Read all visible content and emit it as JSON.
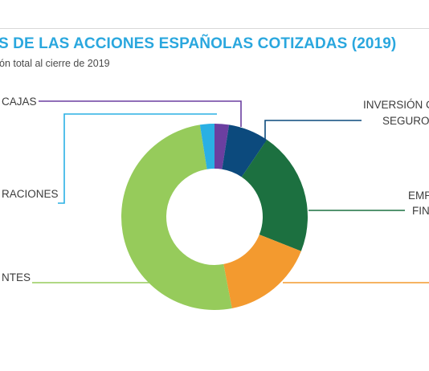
{
  "header": {
    "title": "S DE LAS ACCIONES ESPAÑOLAS COTIZADAS (2019)",
    "subtitle": "ón total al cierre de 2019"
  },
  "chart_data": {
    "type": "pie",
    "donut": true,
    "title": "S DE LAS ACCIONES ESPAÑOLAS COTIZADAS (2019)",
    "subtitle": "ón total al cierre de 2019",
    "start_angle_deg": 0,
    "direction": "clockwise",
    "slices": [
      {
        "label_lines": [
          "CAJAS"
        ],
        "value": 2.5,
        "color": "#6b3fa0"
      },
      {
        "label_lines": [
          "INVERSIÓN C",
          "SEGURO"
        ],
        "value": 7.0,
        "color": "#0c4a7d"
      },
      {
        "label_lines": [
          "EMP",
          "FIN"
        ],
        "value": 21.5,
        "color": "#1c7040"
      },
      {
        "label_lines": [
          ""
        ],
        "value": 16.0,
        "color": "#f39a2f"
      },
      {
        "label_lines": [
          "NTES"
        ],
        "value": 50.5,
        "color": "#96cb5b"
      },
      {
        "label_lines": [
          "RACIONES"
        ],
        "value": 2.5,
        "color": "#2ab0e4"
      }
    ]
  }
}
